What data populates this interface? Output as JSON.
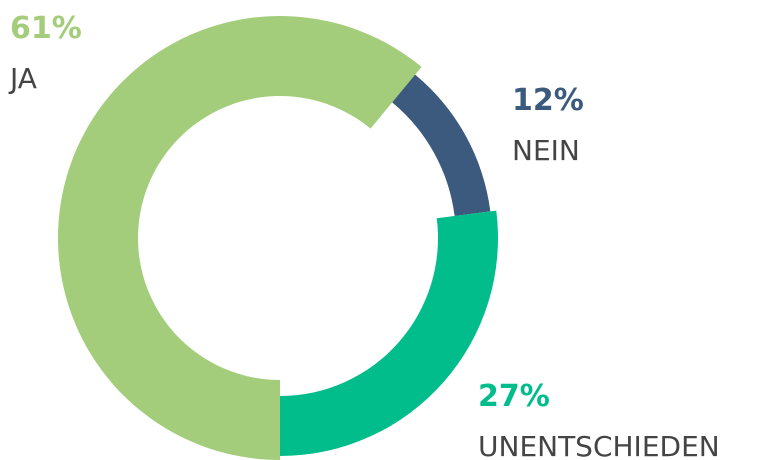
{
  "chart_data": {
    "type": "pie",
    "donut": true,
    "categories": [
      "JA",
      "NEIN",
      "UNENTSCHIEDEN"
    ],
    "values": [
      61,
      12,
      27
    ],
    "value_labels": [
      "61%",
      "12%",
      "27%"
    ],
    "colors": [
      "#a3cd7a",
      "#3b5a7e",
      "#00bd8b"
    ]
  }
}
